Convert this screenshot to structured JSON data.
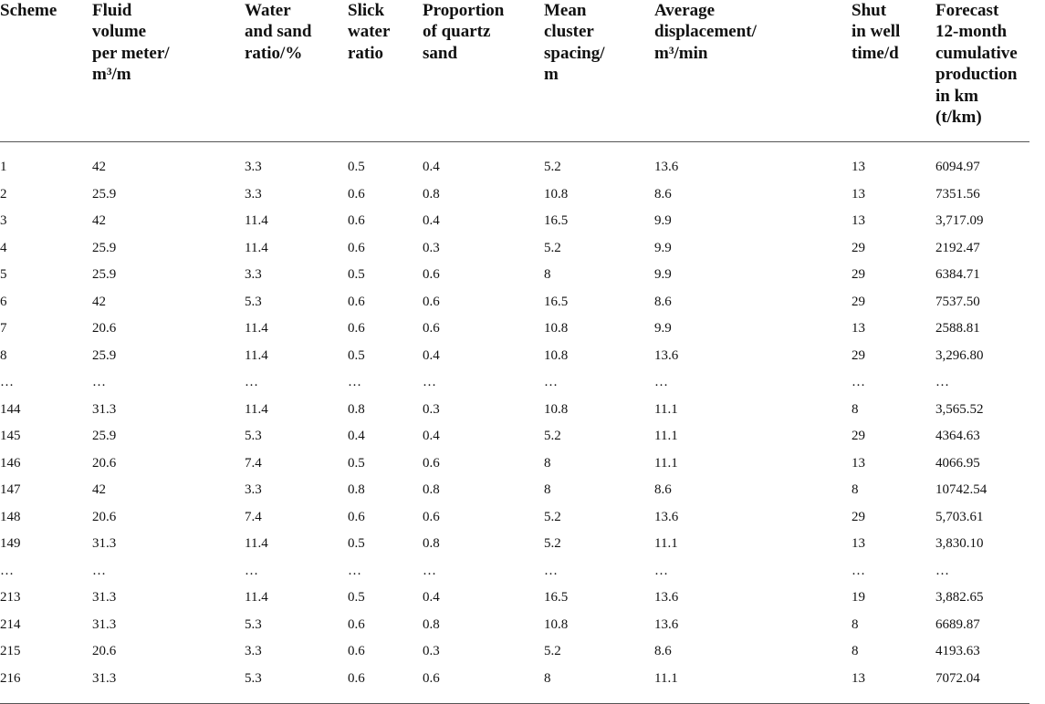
{
  "table": {
    "headers": [
      "Scheme",
      "Fluid\nvolume\nper meter/\nm³/m",
      "Water\nand sand\nratio/%",
      "Slick\nwater\nratio",
      "Proportion\nof quartz\nsand",
      "Mean\ncluster\nspacing/\nm",
      "Average\ndisplacement/\nm³/min",
      "Shut\nin well\ntime/d",
      "Forecast\n12-month\ncumulative\nproduction\nin km\n(t/km)"
    ],
    "rows": [
      [
        "1",
        "42",
        "3.3",
        "0.5",
        "0.4",
        "5.2",
        "13.6",
        "13",
        "6094.97"
      ],
      [
        "2",
        "25.9",
        "3.3",
        "0.6",
        "0.8",
        "10.8",
        "8.6",
        "13",
        "7351.56"
      ],
      [
        "3",
        "42",
        "11.4",
        "0.6",
        "0.4",
        "16.5",
        "9.9",
        "13",
        "3,717.09"
      ],
      [
        "4",
        "25.9",
        "11.4",
        "0.6",
        "0.3",
        "5.2",
        "9.9",
        "29",
        "2192.47"
      ],
      [
        "5",
        "25.9",
        "3.3",
        "0.5",
        "0.6",
        "8",
        "9.9",
        "29",
        "6384.71"
      ],
      [
        "6",
        "42",
        "5.3",
        "0.6",
        "0.6",
        "16.5",
        "8.6",
        "29",
        "7537.50"
      ],
      [
        "7",
        "20.6",
        "11.4",
        "0.6",
        "0.6",
        "10.8",
        "9.9",
        "13",
        "2588.81"
      ],
      [
        "8",
        "25.9",
        "11.4",
        "0.5",
        "0.4",
        "10.8",
        "13.6",
        "29",
        "3,296.80"
      ],
      [
        "…",
        "…",
        "…",
        "…",
        "…",
        "…",
        "…",
        "…",
        "…"
      ],
      [
        "144",
        "31.3",
        "11.4",
        "0.8",
        "0.3",
        "10.8",
        "11.1",
        "8",
        "3,565.52"
      ],
      [
        "145",
        "25.9",
        "5.3",
        "0.4",
        "0.4",
        "5.2",
        "11.1",
        "29",
        "4364.63"
      ],
      [
        "146",
        "20.6",
        "7.4",
        "0.5",
        "0.6",
        "8",
        "11.1",
        "13",
        "4066.95"
      ],
      [
        "147",
        "42",
        "3.3",
        "0.8",
        "0.8",
        "8",
        "8.6",
        "8",
        "10742.54"
      ],
      [
        "148",
        "20.6",
        "7.4",
        "0.6",
        "0.6",
        "5.2",
        "13.6",
        "29",
        "5,703.61"
      ],
      [
        "149",
        "31.3",
        "11.4",
        "0.5",
        "0.8",
        "5.2",
        "11.1",
        "13",
        "3,830.10"
      ],
      [
        "…",
        "…",
        "…",
        "…",
        "…",
        "…",
        "…",
        "…",
        "…"
      ],
      [
        "213",
        "31.3",
        "11.4",
        "0.5",
        "0.4",
        "16.5",
        "13.6",
        "19",
        "3,882.65"
      ],
      [
        "214",
        "31.3",
        "5.3",
        "0.6",
        "0.8",
        "10.8",
        "13.6",
        "8",
        "6689.87"
      ],
      [
        "215",
        "20.6",
        "3.3",
        "0.6",
        "0.3",
        "5.2",
        "8.6",
        "8",
        "4193.63"
      ],
      [
        "216",
        "31.3",
        "5.3",
        "0.6",
        "0.6",
        "8",
        "11.1",
        "13",
        "7072.04"
      ]
    ]
  }
}
